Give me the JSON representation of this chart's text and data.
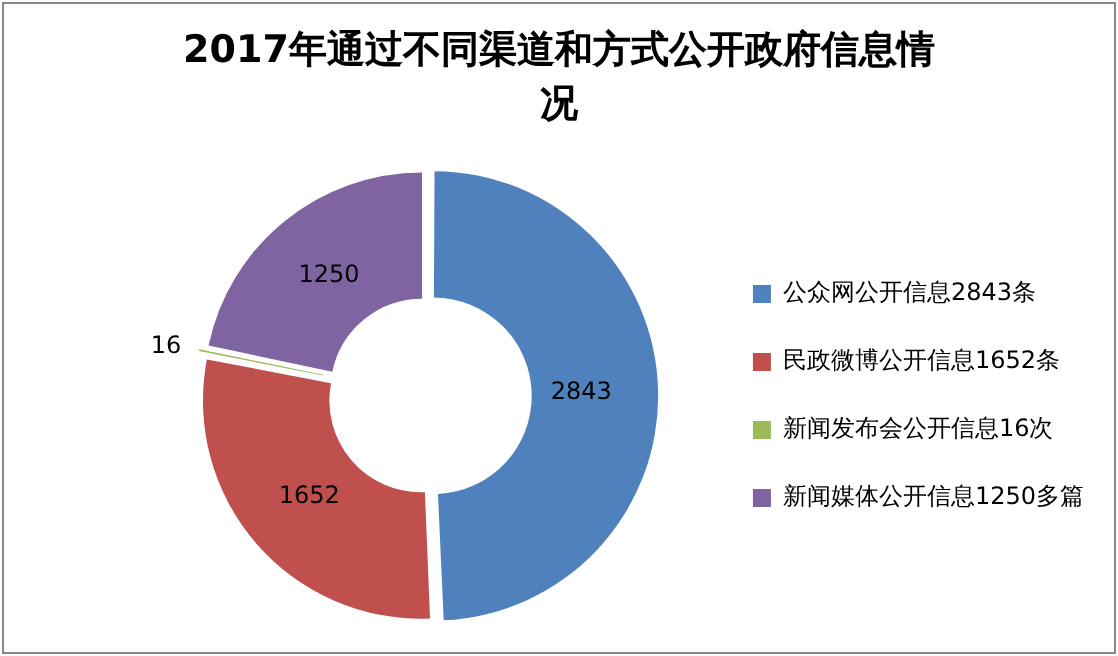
{
  "chart_data": {
    "type": "donut",
    "title": "2017年通过不同渠道和方式公开政府信息情况",
    "categories": [
      "公众网公开信息2843条",
      "民政微博公开信息1652条",
      "新闻发布会公开信息16次",
      "新闻媒体公开信息1250多篇"
    ],
    "values": [
      2843,
      1652,
      16,
      1250
    ],
    "colors": [
      "#4f81bd",
      "#c0504d",
      "#9bbb59",
      "#8064a2"
    ],
    "data_labels": true,
    "legend": "right"
  }
}
